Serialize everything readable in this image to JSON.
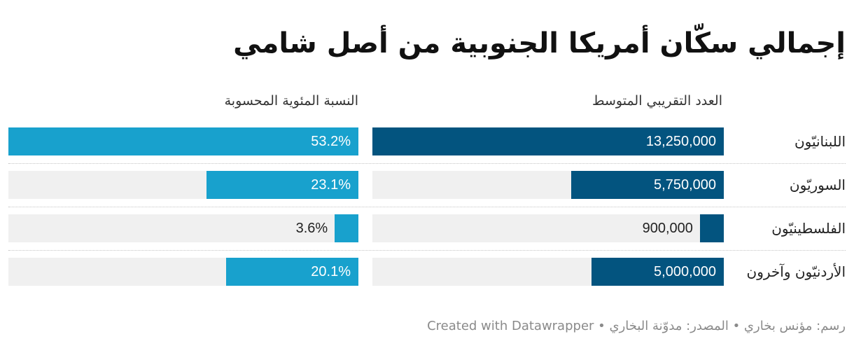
{
  "chart_data": {
    "type": "bar",
    "title": "إجمالي سكّان أمريكا الجنوبية من أصل شامي",
    "categories": [
      "اللبنانيّون",
      "السوريّون",
      "الفلسطينيّون",
      "الأردنيّون وآخرون"
    ],
    "series": [
      {
        "name": "العدد التقريبي المتوسط",
        "values": [
          13250000,
          5750000,
          900000,
          5000000
        ],
        "labels": [
          "13,250,000",
          "5,750,000",
          "900,000",
          "5,000,000"
        ],
        "color": "#03547f",
        "max": 13250000
      },
      {
        "name": "النسبة المئوية المحسوبة",
        "values": [
          53.2,
          23.1,
          3.6,
          20.1
        ],
        "labels": [
          "53.2%",
          "23.1%",
          "3.6%",
          "20.1%"
        ],
        "color": "#18a1cd",
        "max": 53.2
      }
    ],
    "legend": "column headers"
  },
  "colors": {
    "track": "#f0f0f0",
    "count_bar": "#03547f",
    "percent_bar": "#18a1cd"
  },
  "footer": {
    "text": "رسم: مؤنس بخاري • المصدر: مدوّنة البخاري • Created with Datawrapper"
  }
}
